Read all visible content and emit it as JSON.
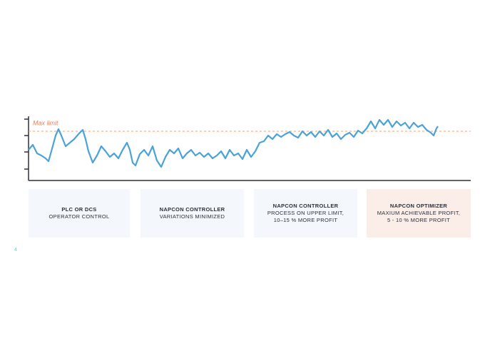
{
  "max_limit_label": "Max limit",
  "stages": [
    {
      "title": "PLC OR DCS",
      "lines": [
        "OPERATOR CONTROL"
      ]
    },
    {
      "title": "NAPCON CONTROLLER",
      "lines": [
        "VARIATIONS MINIMIZED"
      ]
    },
    {
      "title": "NAPCON CONTROLLER",
      "lines": [
        "PROCESS ON UPPER LIMIT,",
        "10–15 % MORE PROFIT"
      ]
    },
    {
      "title": "NAPCON OPTIMIZER",
      "lines": [
        "MAXIUM ACHIEVABLE PROFIT,",
        "5 - 10 % MORE PROFIT"
      ]
    }
  ],
  "page_number": "4"
}
